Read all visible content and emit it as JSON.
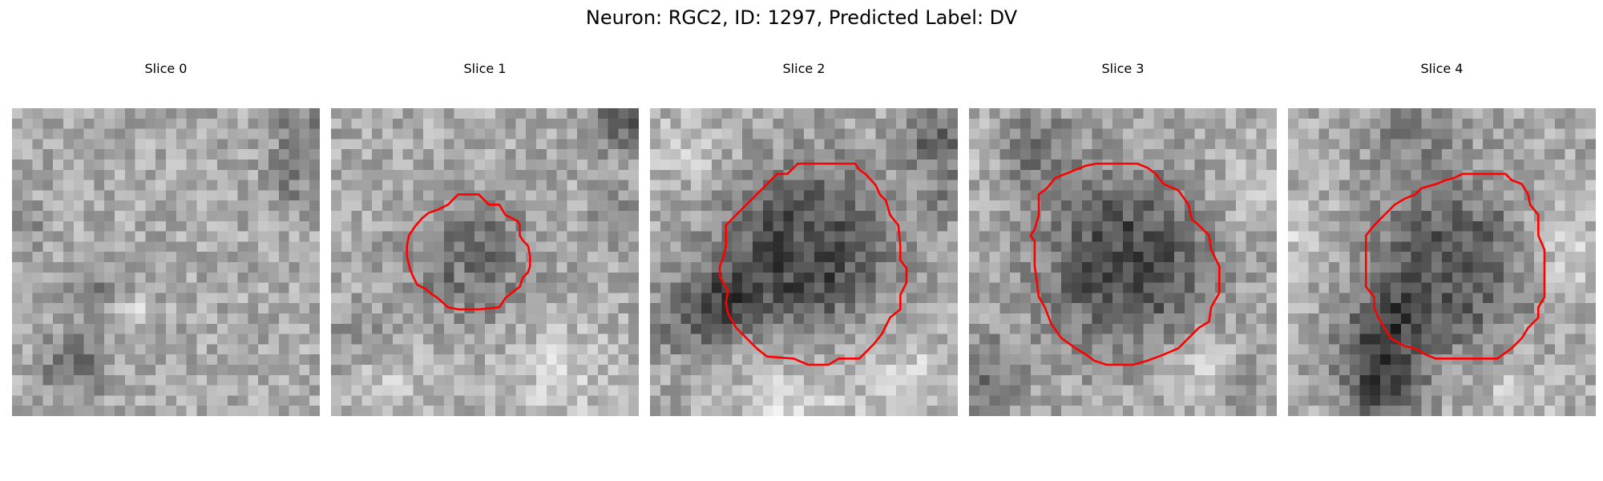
{
  "figure": {
    "title": "Neuron: RGC2, ID: 1297, Predicted Label: DV"
  },
  "panels": [
    {
      "title": "Slice 0",
      "has_contour": false,
      "blob": null,
      "dark_spots": [
        {
          "cx": 6,
          "cy": 25,
          "r": 2.2,
          "strength": 60
        },
        {
          "cx": 28,
          "cy": 2,
          "r": 1.8,
          "strength": 55
        },
        {
          "cx": 27,
          "cy": 7,
          "r": 1.8,
          "strength": 45
        },
        {
          "cx": 8,
          "cy": 17,
          "r": 1.6,
          "strength": 40
        },
        {
          "cx": 1,
          "cy": 12,
          "r": 1.5,
          "strength": 35
        }
      ],
      "bright_spots": [
        {
          "cx": 12,
          "cy": 20,
          "r": 1.0,
          "strength": 40
        },
        {
          "cx": 19,
          "cy": 10,
          "r": 1.2,
          "strength": 25
        }
      ]
    },
    {
      "title": "Slice 1",
      "has_contour": true,
      "contour": [
        [
          12.4,
          8.4
        ],
        [
          14.4,
          8.4
        ],
        [
          15.4,
          9.4
        ],
        [
          16.4,
          9.4
        ],
        [
          16.7,
          9.9
        ],
        [
          17.0,
          10.4
        ],
        [
          17.6,
          10.7
        ],
        [
          18.2,
          11.0
        ],
        [
          18.4,
          11.4
        ],
        [
          18.4,
          12.4
        ],
        [
          18.7,
          12.9
        ],
        [
          19.2,
          13.4
        ],
        [
          19.4,
          14.4
        ],
        [
          19.4,
          15.4
        ],
        [
          19.2,
          16.0
        ],
        [
          18.7,
          16.5
        ],
        [
          18.4,
          17.4
        ],
        [
          17.6,
          18.0
        ],
        [
          17.0,
          18.5
        ],
        [
          16.4,
          19.4
        ],
        [
          14.4,
          19.6
        ],
        [
          13.4,
          19.6
        ],
        [
          12.4,
          19.6
        ],
        [
          11.4,
          19.4
        ],
        [
          10.4,
          18.5
        ],
        [
          9.8,
          18.1
        ],
        [
          9.2,
          17.6
        ],
        [
          8.4,
          17.2
        ],
        [
          8.0,
          16.4
        ],
        [
          7.7,
          15.7
        ],
        [
          7.4,
          14.4
        ],
        [
          7.4,
          13.4
        ],
        [
          7.6,
          12.4
        ],
        [
          8.2,
          11.5
        ],
        [
          8.9,
          10.7
        ],
        [
          9.5,
          10.2
        ],
        [
          10.4,
          9.9
        ],
        [
          11.4,
          9.4
        ]
      ],
      "blob": {
        "cx": 13.5,
        "cy": 14.5,
        "r": 6.5,
        "strength": 55
      },
      "dark_spots": [
        {
          "cx": 29,
          "cy": 1,
          "r": 2.6,
          "strength": 80
        },
        {
          "cx": 28,
          "cy": 11,
          "r": 2.0,
          "strength": 45
        },
        {
          "cx": 2,
          "cy": 22,
          "r": 2.0,
          "strength": 30
        }
      ],
      "bright_spots": [
        {
          "cx": 22,
          "cy": 26,
          "r": 3.5,
          "strength": 35
        },
        {
          "cx": 6,
          "cy": 27,
          "r": 2.5,
          "strength": 30
        }
      ]
    },
    {
      "title": "Slice 2",
      "has_contour": true,
      "contour": [
        [
          17.4,
          5.4
        ],
        [
          18.4,
          5.4
        ],
        [
          20.0,
          5.4
        ],
        [
          20.4,
          6.0
        ],
        [
          21.0,
          6.4
        ],
        [
          22.0,
          7.5
        ],
        [
          22.4,
          8.4
        ],
        [
          23.0,
          9.0
        ],
        [
          23.4,
          10.4
        ],
        [
          24.2,
          11.4
        ],
        [
          24.4,
          13.4
        ],
        [
          24.4,
          14.8
        ],
        [
          25.0,
          15.6
        ],
        [
          25.0,
          17.0
        ],
        [
          24.4,
          18.2
        ],
        [
          24.4,
          19.6
        ],
        [
          23.4,
          20.4
        ],
        [
          22.6,
          22.0
        ],
        [
          21.8,
          23.0
        ],
        [
          20.4,
          24.4
        ],
        [
          18.4,
          24.4
        ],
        [
          17.4,
          25.0
        ],
        [
          15.4,
          25.0
        ],
        [
          14.0,
          24.4
        ],
        [
          11.4,
          24.2
        ],
        [
          10.4,
          23.4
        ],
        [
          9.4,
          22.4
        ],
        [
          8.4,
          21.4
        ],
        [
          7.6,
          20.0
        ],
        [
          7.4,
          19.0
        ],
        [
          7.6,
          17.8
        ],
        [
          6.8,
          16.4
        ],
        [
          6.8,
          15.4
        ],
        [
          7.2,
          14.4
        ],
        [
          7.4,
          13.4
        ],
        [
          7.4,
          11.4
        ],
        [
          8.4,
          10.4
        ],
        [
          9.4,
          9.4
        ],
        [
          10.4,
          8.4
        ],
        [
          11.4,
          7.4
        ],
        [
          12.4,
          6.4
        ],
        [
          13.4,
          6.4
        ],
        [
          14.4,
          5.4
        ],
        [
          16.4,
          5.4
        ]
      ],
      "blob": {
        "cx": 15.0,
        "cy": 14.0,
        "r": 8.8,
        "strength": 95
      },
      "dark_spots": [
        {
          "cx": 7,
          "cy": 19,
          "r": 2.6,
          "strength": 75
        },
        {
          "cx": 28,
          "cy": 3,
          "r": 2.4,
          "strength": 70
        },
        {
          "cx": 29,
          "cy": 9,
          "r": 1.8,
          "strength": 40
        },
        {
          "cx": 3,
          "cy": 21,
          "r": 2.5,
          "strength": 40
        }
      ],
      "bright_spots": [
        {
          "cx": 14,
          "cy": 29,
          "r": 4.0,
          "strength": 45
        },
        {
          "cx": 25,
          "cy": 26,
          "r": 3.0,
          "strength": 40
        },
        {
          "cx": 4,
          "cy": 4,
          "r": 3.0,
          "strength": 25
        }
      ]
    },
    {
      "title": "Slice 3",
      "has_contour": true,
      "contour": [
        [
          12.4,
          5.4
        ],
        [
          15.0,
          5.4
        ],
        [
          16.4,
          5.4
        ],
        [
          17.4,
          5.8
        ],
        [
          18.2,
          6.4
        ],
        [
          19.0,
          7.4
        ],
        [
          20.4,
          8.0
        ],
        [
          21.4,
          9.4
        ],
        [
          21.7,
          10.8
        ],
        [
          22.4,
          11.4
        ],
        [
          23.4,
          12.4
        ],
        [
          23.6,
          13.8
        ],
        [
          24.4,
          15.4
        ],
        [
          24.4,
          16.8
        ],
        [
          24.4,
          18.0
        ],
        [
          23.6,
          19.4
        ],
        [
          23.4,
          20.8
        ],
        [
          22.4,
          21.4
        ],
        [
          21.4,
          22.4
        ],
        [
          20.4,
          23.4
        ],
        [
          19.0,
          24.0
        ],
        [
          17.4,
          24.6
        ],
        [
          16.0,
          25.0
        ],
        [
          13.4,
          25.0
        ],
        [
          12.2,
          24.6
        ],
        [
          11.4,
          24.0
        ],
        [
          10.4,
          23.4
        ],
        [
          9.0,
          22.4
        ],
        [
          8.0,
          21.0
        ],
        [
          7.4,
          19.4
        ],
        [
          6.8,
          18.4
        ],
        [
          6.6,
          16.8
        ],
        [
          6.4,
          15.4
        ],
        [
          6.4,
          13.0
        ],
        [
          6.0,
          12.4
        ],
        [
          6.4,
          11.8
        ],
        [
          6.8,
          10.4
        ],
        [
          6.8,
          8.4
        ],
        [
          7.6,
          7.8
        ],
        [
          8.4,
          6.8
        ],
        [
          9.4,
          6.4
        ],
        [
          10.4,
          6.0
        ],
        [
          11.4,
          5.6
        ]
      ],
      "blob": {
        "cx": 15.3,
        "cy": 15.0,
        "r": 9.0,
        "strength": 90
      },
      "dark_spots": [
        {
          "cx": 6,
          "cy": 4,
          "r": 3.0,
          "strength": 55
        },
        {
          "cx": 1,
          "cy": 26,
          "r": 3.0,
          "strength": 50
        },
        {
          "cx": 27,
          "cy": 27,
          "r": 2.0,
          "strength": 30
        }
      ],
      "bright_spots": [
        {
          "cx": 23,
          "cy": 25,
          "r": 2.5,
          "strength": 40
        },
        {
          "cx": 1,
          "cy": 4,
          "r": 2.2,
          "strength": 35
        },
        {
          "cx": 27,
          "cy": 8,
          "r": 2.5,
          "strength": 25
        }
      ]
    },
    {
      "title": "Slice 4",
      "has_contour": true,
      "contour": [
        [
          17.0,
          6.4
        ],
        [
          21.2,
          6.4
        ],
        [
          21.8,
          7.0
        ],
        [
          22.8,
          7.4
        ],
        [
          23.4,
          8.4
        ],
        [
          23.6,
          9.4
        ],
        [
          24.4,
          10.4
        ],
        [
          24.4,
          12.4
        ],
        [
          25.0,
          13.8
        ],
        [
          25.0,
          18.4
        ],
        [
          24.4,
          19.4
        ],
        [
          24.4,
          20.4
        ],
        [
          23.4,
          21.4
        ],
        [
          22.8,
          22.4
        ],
        [
          21.8,
          23.4
        ],
        [
          20.4,
          24.4
        ],
        [
          18.4,
          24.4
        ],
        [
          16.4,
          24.4
        ],
        [
          14.4,
          24.4
        ],
        [
          13.4,
          24.0
        ],
        [
          12.4,
          23.4
        ],
        [
          11.4,
          23.2
        ],
        [
          10.0,
          22.4
        ],
        [
          9.4,
          21.4
        ],
        [
          8.8,
          20.4
        ],
        [
          8.4,
          19.4
        ],
        [
          8.4,
          18.4
        ],
        [
          7.6,
          17.4
        ],
        [
          7.6,
          15.8
        ],
        [
          7.6,
          13.4
        ],
        [
          7.6,
          12.4
        ],
        [
          8.4,
          11.4
        ],
        [
          9.4,
          10.4
        ],
        [
          10.4,
          9.4
        ],
        [
          11.4,
          8.8
        ],
        [
          12.4,
          8.4
        ],
        [
          13.0,
          7.8
        ],
        [
          14.4,
          7.4
        ],
        [
          15.4,
          7.0
        ],
        [
          16.2,
          6.8
        ]
      ],
      "blob": {
        "cx": 16.0,
        "cy": 15.5,
        "r": 8.5,
        "strength": 80
      },
      "dark_spots": [
        {
          "cx": 9,
          "cy": 24,
          "r": 3.2,
          "strength": 80
        },
        {
          "cx": 9,
          "cy": 28,
          "r": 2.5,
          "strength": 60
        },
        {
          "cx": 10,
          "cy": 20,
          "r": 2.0,
          "strength": 40
        },
        {
          "cx": 12,
          "cy": 3,
          "r": 3.5,
          "strength": 35
        }
      ],
      "bright_spots": [
        {
          "cx": 27,
          "cy": 14,
          "r": 3.0,
          "strength": 40
        },
        {
          "cx": 1,
          "cy": 12,
          "r": 2.5,
          "strength": 35
        },
        {
          "cx": 22,
          "cy": 28,
          "r": 3.0,
          "strength": 30
        }
      ]
    }
  ]
}
